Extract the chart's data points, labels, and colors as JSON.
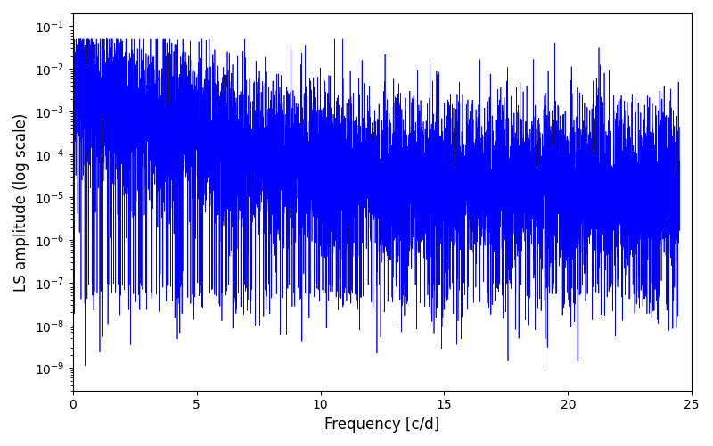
{
  "title": "",
  "xlabel": "Frequency [c/d]",
  "ylabel": "LS amplitude (log scale)",
  "line_color": "blue",
  "xlim": [
    0,
    25
  ],
  "ylim": [
    3e-10,
    0.2
  ],
  "yscale": "log",
  "freq_min": 0.0,
  "freq_max": 24.5,
  "n_points": 8000,
  "seed": 17,
  "background_color": "#ffffff",
  "figsize": [
    8.0,
    5.0
  ],
  "dpi": 100
}
